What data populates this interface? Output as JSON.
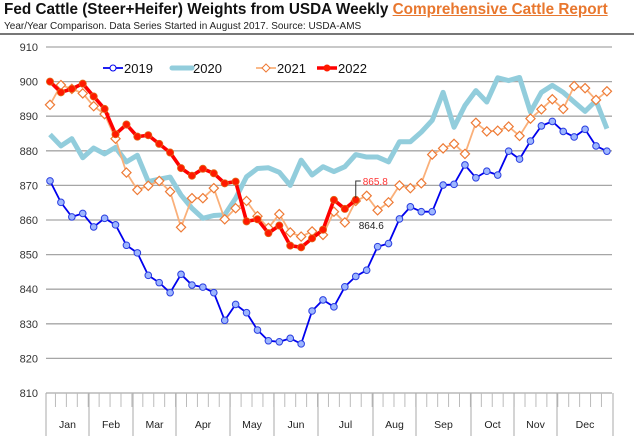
{
  "title": "Fed Cattle (Steer+Heifer) Weights from USDA Weekly",
  "title_link": "Comprehensive Cattle Report",
  "subtitle": "Year/Year Comparison.  Data Series Started in August 2017.  Source:  USDA-AMS",
  "chart_data": {
    "type": "line",
    "title": "Fed Cattle (Steer+Heifer) Weights from USDA Weekly Comprehensive Cattle Report",
    "xlabel": "",
    "ylabel": "",
    "ylim": [
      810,
      910
    ],
    "yticks": [
      810,
      820,
      830,
      840,
      850,
      860,
      870,
      880,
      890,
      900,
      910
    ],
    "months": [
      "Jan",
      "Feb",
      "Mar",
      "Apr",
      "May",
      "Jun",
      "Jul",
      "Aug",
      "Sep",
      "Oct",
      "Nov",
      "Dec"
    ],
    "grid": true,
    "legend": "top",
    "series": [
      {
        "name": "2019",
        "color": "#0000ee",
        "marker": "circle",
        "values": [
          871.3,
          865.1,
          860.9,
          861.9,
          858.0,
          860.5,
          858.6,
          852.7,
          850.5,
          844.0,
          841.9,
          839.0,
          844.3,
          841.2,
          840.6,
          839.0,
          831.0,
          835.6,
          833.2,
          828.2,
          825.1,
          824.8,
          825.8,
          824.2,
          833.7,
          836.9,
          834.9,
          840.7,
          843.7,
          845.5,
          852.3,
          853.2,
          860.3,
          863.8,
          862.4,
          862.4,
          870.1,
          870.3,
          875.9,
          872.2,
          874.1,
          873.0,
          879.9,
          877.6,
          882.8,
          887.2,
          888.5,
          885.6,
          884.0,
          886.2,
          881.4,
          879.9
        ]
      },
      {
        "name": "2020",
        "color": "#92cddc",
        "marker": "none",
        "values": [
          884.7,
          881.4,
          883.5,
          878.0,
          880.8,
          879.1,
          881.0,
          876.8,
          878.7,
          871.1,
          871.8,
          872.4,
          867.2,
          863.4,
          860.5,
          861.3,
          861.5,
          866.3,
          872.5,
          874.9,
          875.1,
          873.8,
          870.0,
          877.3,
          873.0,
          875.4,
          874.0,
          875.4,
          878.9,
          878.2,
          878.2,
          876.8,
          882.6,
          882.6,
          885.4,
          888.8,
          896.9,
          886.8,
          893.1,
          897.4,
          894.1,
          901.1,
          900.3,
          901.2,
          891.2,
          896.9,
          898.9,
          896.9,
          894.1,
          891.4,
          894.5,
          886.4
        ]
      },
      {
        "name": "2021",
        "color": "#fab07a",
        "marker": "diamond",
        "values": [
          893.3,
          899.0,
          897.9,
          896.6,
          892.9,
          890.6,
          883.5,
          873.7,
          868.7,
          869.9,
          871.3,
          868.2,
          857.9,
          866.3,
          866.3,
          869.2,
          860.2,
          863.4,
          865.5,
          861.1,
          857.7,
          861.7,
          856.4,
          855.2,
          856.7,
          855.7,
          862.4,
          859.3,
          865.5,
          867.0,
          862.8,
          865.1,
          870.0,
          869.2,
          870.6,
          878.9,
          880.7,
          882.0,
          879.1,
          888.1,
          885.6,
          885.8,
          887.0,
          884.3,
          889.3,
          892.0,
          894.9,
          892.1,
          898.7,
          898.1,
          894.7,
          897.2
        ]
      },
      {
        "name": "2022",
        "color": "#ff0000",
        "marker": "dot",
        "values": [
          900.0,
          896.9,
          897.9,
          899.4,
          895.7,
          892.1,
          884.8,
          887.6,
          884.1,
          884.5,
          882.0,
          879.5,
          875.0,
          872.8,
          874.8,
          873.5,
          870.6,
          871.1,
          859.6,
          860.2,
          856.2,
          858.4,
          852.6,
          852.1,
          854.7,
          857.2,
          865.8,
          863.2,
          865.8
        ]
      }
    ],
    "annotations": [
      {
        "text": "865.8",
        "color": "#ff3333",
        "series": "2022",
        "week": 29
      },
      {
        "text": "864.6",
        "color": "#222222",
        "series": "2022",
        "week": 29
      }
    ]
  }
}
